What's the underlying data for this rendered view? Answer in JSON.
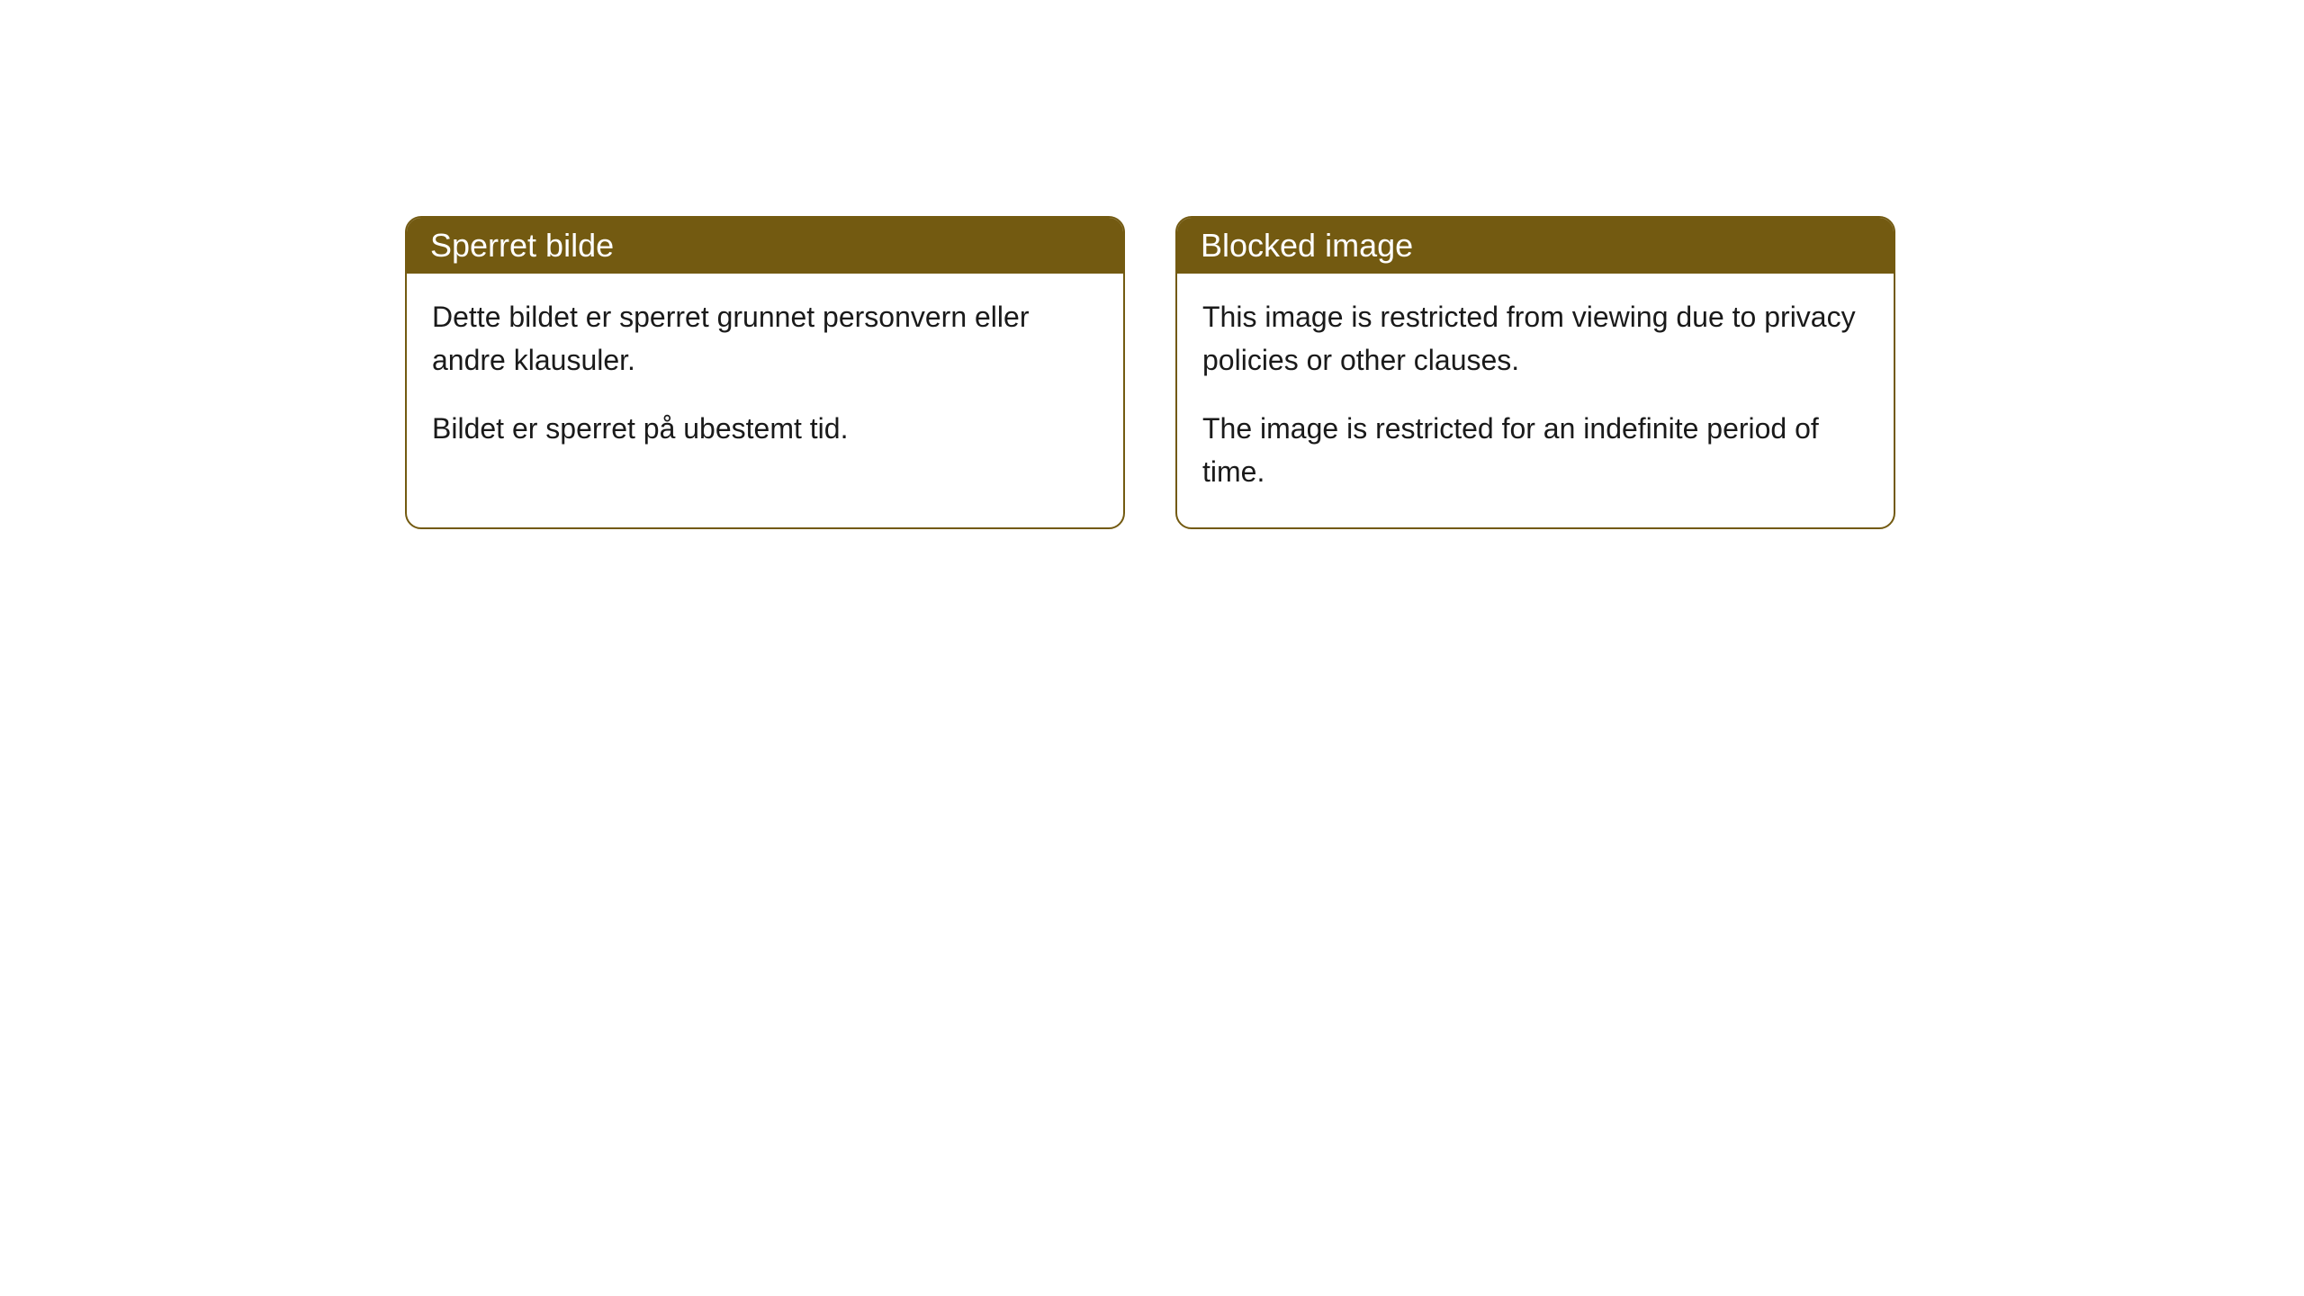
{
  "cards": [
    {
      "title": "Sperret bilde",
      "para1": "Dette bildet er sperret grunnet personvern eller andre klausuler.",
      "para2": "Bildet er sperret på ubestemt tid."
    },
    {
      "title": "Blocked image",
      "para1": "This image is restricted from viewing due to privacy policies or other clauses.",
      "para2": "The image is restricted for an indefinite period of time."
    }
  ],
  "style": {
    "header_bg": "#735a11",
    "header_text_color": "#ffffff",
    "border_color": "#735a11",
    "body_bg": "#ffffff",
    "body_text_color": "#1a1a1a",
    "border_radius": 18,
    "header_font_size": 36,
    "body_font_size": 32
  }
}
